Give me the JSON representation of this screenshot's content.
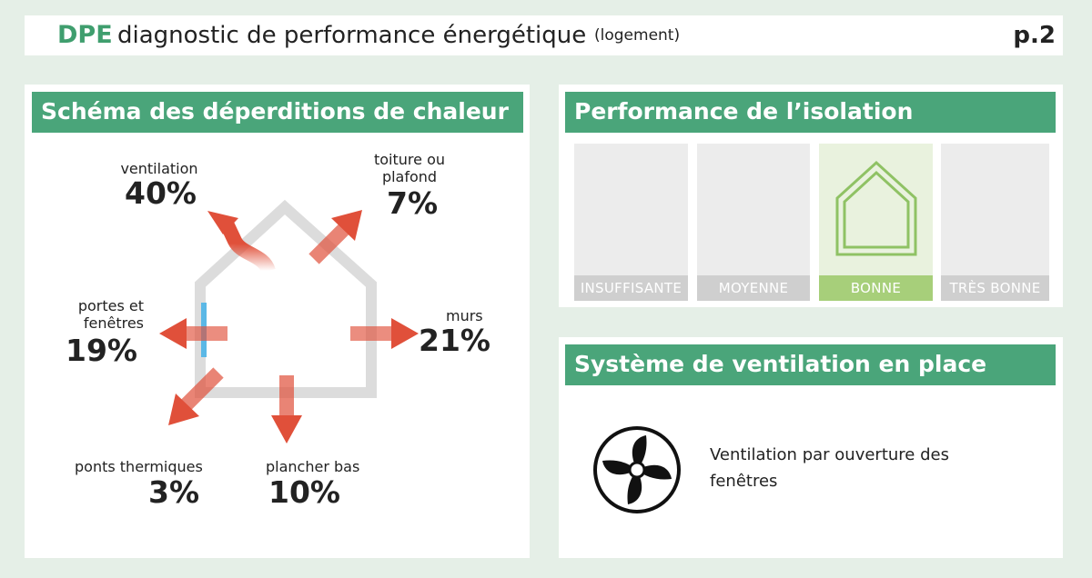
{
  "header": {
    "brand": "DPE",
    "title": "diagnostic de performance énergétique",
    "subtitle": "(logement)",
    "page": "p.2"
  },
  "deperditions": {
    "title": "Schéma des déperditions de chaleur",
    "items": [
      {
        "label": "ventilation",
        "value": "40%"
      },
      {
        "label": "toiture ou plafond",
        "value": "7%"
      },
      {
        "label": "portes et fenêtres",
        "value": "19%"
      },
      {
        "label": "murs",
        "value": "21%"
      },
      {
        "label": "ponts thermiques",
        "value": "3%"
      },
      {
        "label": "plancher bas",
        "value": "10%"
      }
    ]
  },
  "isolation": {
    "title": "Performance de l’isolation",
    "levels": [
      "INSUFFISANTE",
      "MOYENNE",
      "BONNE",
      "TRÈS BONNE"
    ],
    "selected": "BONNE"
  },
  "ventilation": {
    "title": "Système de ventilation en place",
    "text": "Ventilation par ouverture des fenêtres",
    "icon": "fan-icon"
  },
  "colors": {
    "green": "#4aa57a",
    "arrow": "#e0503a",
    "selected": "#a7cf7a"
  }
}
